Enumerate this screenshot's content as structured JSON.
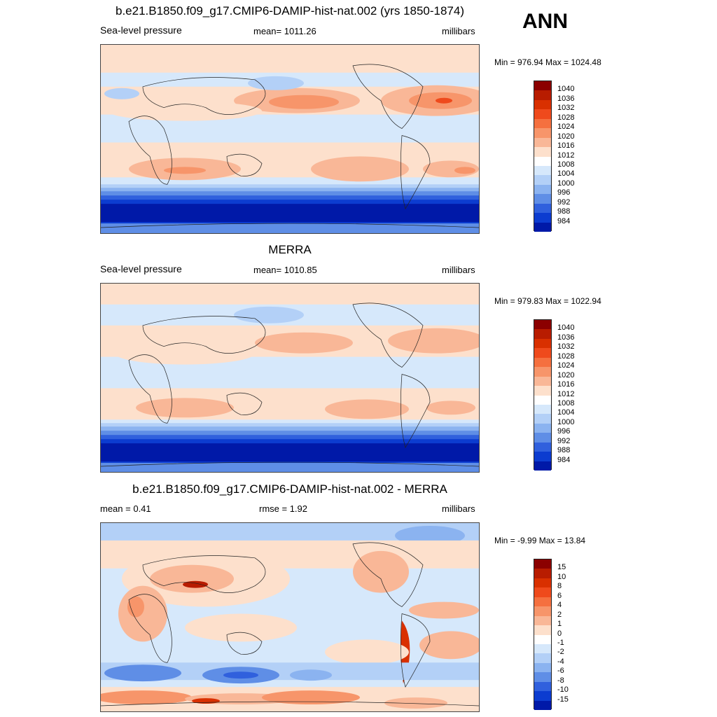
{
  "season": "ANN",
  "panels": [
    {
      "title": "b.e21.B1850.f09_g17.CMIP6-DAMIP-hist-nat.002 (yrs 1850-1874)",
      "left": "Sea-level pressure",
      "center": "mean= 1011.26",
      "right": "millibars",
      "minmax": "Min = 976.94 Max = 1024.48"
    },
    {
      "title": "MERRA",
      "left": "Sea-level pressure",
      "center": "mean= 1010.85",
      "right": "millibars",
      "minmax": "Min = 979.83 Max = 1022.94"
    },
    {
      "title": "b.e21.B1850.f09_g17.CMIP6-DAMIP-hist-nat.002 - MERRA",
      "left": "mean =   0.41",
      "center": "rmse =   1.92",
      "right": "millibars",
      "minmax": "Min =  -9.99 Max =  13.84"
    }
  ],
  "colorbars": {
    "slp_levels": [
      "1040",
      "1036",
      "1032",
      "1028",
      "1024",
      "1020",
      "1016",
      "1012",
      "1008",
      "1004",
      "1000",
      "996",
      "992",
      "988",
      "984"
    ],
    "diff_levels": [
      "15",
      "10",
      "8",
      "6",
      "4",
      "2",
      "1",
      "0",
      "-1",
      "-2",
      "-4",
      "-6",
      "-8",
      "-10",
      "-15"
    ],
    "colors": [
      "#8b0000",
      "#b81c00",
      "#d93000",
      "#ef4a1c",
      "#f5703f",
      "#f7956a",
      "#f9b797",
      "#fde0cc",
      "#ffffff",
      "#d6e8fb",
      "#b3d0f7",
      "#8bb3f0",
      "#5f8ee6",
      "#3060dd",
      "#0c3cd0",
      "#0019a8"
    ]
  },
  "chart_data": [
    {
      "type": "heatmap",
      "title": "b.e21.B1850.f09_g17.CMIP6-DAMIP-hist-nat.002 (yrs 1850-1874)",
      "season": "ANN",
      "variable": "Sea-level pressure",
      "units": "millibars",
      "mean": 1011.26,
      "min": 976.94,
      "max": 1024.48,
      "contour_levels": [
        984,
        988,
        992,
        996,
        1000,
        1004,
        1008,
        1012,
        1016,
        1020,
        1024,
        1028,
        1032,
        1036,
        1040
      ]
    },
    {
      "type": "heatmap",
      "title": "MERRA",
      "variable": "Sea-level pressure",
      "units": "millibars",
      "mean": 1010.85,
      "min": 979.83,
      "max": 1022.94,
      "contour_levels": [
        984,
        988,
        992,
        996,
        1000,
        1004,
        1008,
        1012,
        1016,
        1020,
        1024,
        1028,
        1032,
        1036,
        1040
      ]
    },
    {
      "type": "heatmap",
      "title": "b.e21.B1850.f09_g17.CMIP6-DAMIP-hist-nat.002 - MERRA",
      "units": "millibars",
      "mean": 0.41,
      "rmse": 1.92,
      "min": -9.99,
      "max": 13.84,
      "contour_levels": [
        -15,
        -10,
        -8,
        -6,
        -4,
        -2,
        -1,
        0,
        1,
        2,
        4,
        6,
        8,
        10,
        15
      ]
    }
  ]
}
